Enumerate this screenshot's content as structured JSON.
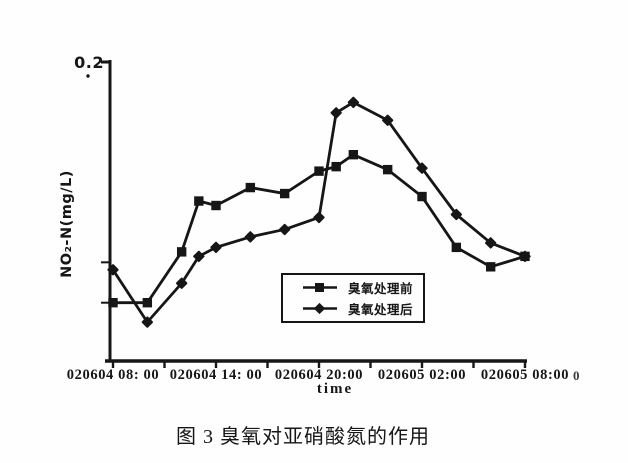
{
  "figure": {
    "caption": "图 3 臭氧对亚硝酸氮的作用"
  },
  "chart_data": {
    "type": "line",
    "title": "",
    "xlabel": "time",
    "ylabel": "NO₂-N(mg/L)",
    "ylim": [
      0,
      0.2
    ],
    "grid": false,
    "x_unit_note": "hours after first tick (020604 08:00)",
    "x": [
      0,
      2,
      4,
      5,
      6,
      8,
      10,
      12,
      13,
      14,
      16,
      18,
      20,
      22,
      24
    ],
    "series": [
      {
        "id": "before",
        "name": "臭氧处理前",
        "marker": "square",
        "values": [
          0.039,
          0.039,
          0.073,
          0.107,
          0.104,
          0.116,
          0.112,
          0.127,
          0.13,
          0.138,
          0.128,
          0.11,
          0.076,
          0.063,
          0.07
        ]
      },
      {
        "id": "after",
        "name": "臭氧处理后",
        "marker": "diamond",
        "values": [
          0.061,
          0.026,
          0.052,
          0.07,
          0.076,
          0.083,
          0.088,
          0.096,
          0.166,
          0.173,
          0.161,
          0.129,
          0.098,
          0.079,
          0.07
        ]
      }
    ],
    "y_ticks": [
      {
        "value": 0.2,
        "label": "0.2"
      },
      {
        "value": 0.066,
        "label": ""
      },
      {
        "value": 0.039,
        "label": ""
      }
    ],
    "x_major_tick_hours": [
      0,
      6,
      12,
      18,
      24
    ],
    "x_major_tick_labels": [
      "020604 08: 00",
      "020604 14: 00",
      "020604 20:00",
      "020605 02:00",
      "020605 08:00"
    ],
    "x_minor_tick_hours": [
      0,
      3,
      6,
      9,
      12,
      15,
      18,
      21,
      24
    ],
    "legend": {
      "position": "inside-lower-center",
      "entries": [
        "臭氧处理前",
        "臭氧处理后"
      ]
    },
    "ink_color": "#161616"
  },
  "artifacts": {
    "stray_text": "0"
  }
}
